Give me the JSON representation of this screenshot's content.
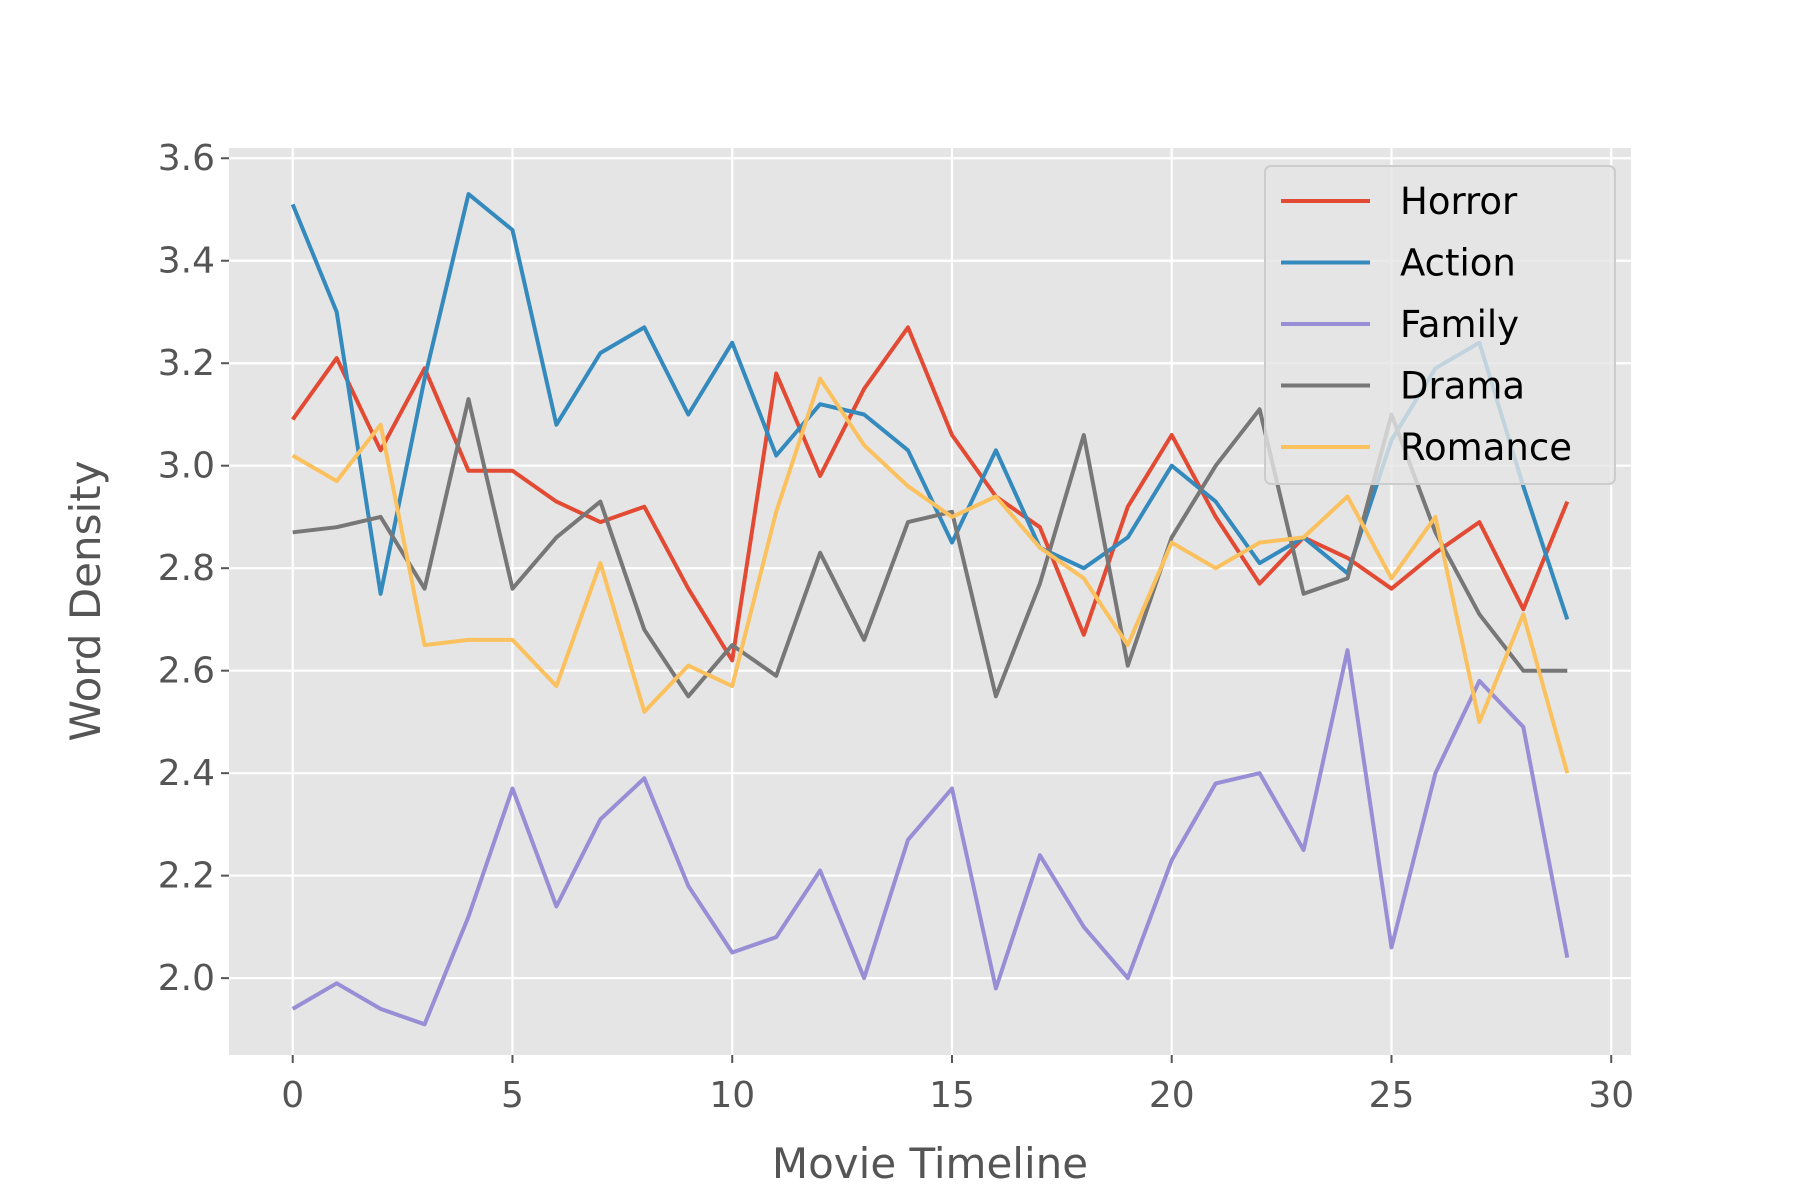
{
  "chart_data": {
    "type": "line",
    "style": "ggplot",
    "xlabel": "Movie Timeline",
    "ylabel": "Word Density",
    "xlim": [
      -1.45,
      30.45
    ],
    "ylim": [
      1.85,
      3.62
    ],
    "xticks": [
      0,
      5,
      10,
      15,
      20,
      25,
      30
    ],
    "yticks": [
      2.0,
      2.2,
      2.4,
      2.6,
      2.8,
      3.0,
      3.2,
      3.4,
      3.6
    ],
    "ytick_labels": [
      "2.0",
      "2.2",
      "2.4",
      "2.6",
      "2.8",
      "3.0",
      "3.2",
      "3.4",
      "3.6"
    ],
    "grid": true,
    "legend_position": "top-right",
    "x": [
      0,
      1,
      2,
      3,
      4,
      5,
      6,
      7,
      8,
      9,
      10,
      11,
      12,
      13,
      14,
      15,
      16,
      17,
      18,
      19,
      20,
      21,
      22,
      23,
      24,
      25,
      26,
      27,
      28,
      29
    ],
    "series": [
      {
        "name": "Horror",
        "color": "#E24A33",
        "values": [
          3.09,
          3.21,
          3.03,
          3.19,
          2.99,
          2.99,
          2.93,
          2.89,
          2.92,
          2.76,
          2.62,
          3.18,
          2.98,
          3.15,
          3.27,
          3.06,
          2.94,
          2.88,
          2.67,
          2.92,
          3.06,
          2.9,
          2.77,
          2.86,
          2.82,
          2.76,
          2.83,
          2.89,
          2.72,
          2.93
        ]
      },
      {
        "name": "Action",
        "color": "#348ABD",
        "values": [
          3.51,
          3.3,
          2.75,
          3.17,
          3.53,
          3.46,
          3.08,
          3.22,
          3.27,
          3.1,
          3.24,
          3.02,
          3.12,
          3.1,
          3.03,
          2.85,
          3.03,
          2.84,
          2.8,
          2.86,
          3.0,
          2.93,
          2.81,
          2.86,
          2.79,
          3.05,
          3.19,
          3.24,
          2.96,
          2.7
        ]
      },
      {
        "name": "Family",
        "color": "#988ED5",
        "values": [
          1.94,
          1.99,
          1.94,
          1.91,
          2.12,
          2.37,
          2.14,
          2.31,
          2.39,
          2.18,
          2.05,
          2.08,
          2.21,
          2.0,
          2.27,
          2.37,
          1.98,
          2.24,
          2.1,
          2.0,
          2.23,
          2.38,
          2.4,
          2.25,
          2.64,
          2.06,
          2.4,
          2.58,
          2.49,
          2.04
        ]
      },
      {
        "name": "Drama",
        "color": "#777777",
        "values": [
          2.87,
          2.88,
          2.9,
          2.76,
          3.13,
          2.76,
          2.86,
          2.93,
          2.68,
          2.55,
          2.65,
          2.59,
          2.83,
          2.66,
          2.89,
          2.91,
          2.55,
          2.77,
          3.06,
          2.61,
          2.86,
          3.0,
          3.11,
          2.75,
          2.78,
          3.1,
          2.87,
          2.71,
          2.6,
          2.6
        ]
      },
      {
        "name": "Romance",
        "color": "#FBC15E",
        "values": [
          3.02,
          2.97,
          3.08,
          2.65,
          2.66,
          2.66,
          2.57,
          2.81,
          2.52,
          2.61,
          2.57,
          2.91,
          3.17,
          3.04,
          2.96,
          2.9,
          2.94,
          2.84,
          2.78,
          2.65,
          2.85,
          2.8,
          2.85,
          2.86,
          2.94,
          2.78,
          2.9,
          2.5,
          2.71,
          2.4
        ]
      }
    ]
  }
}
